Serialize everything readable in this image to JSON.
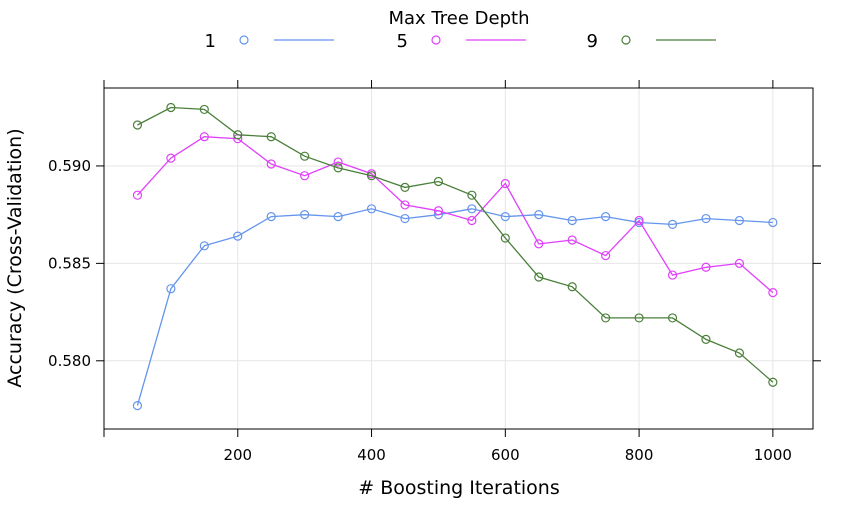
{
  "chart_data": {
    "type": "line",
    "xlabel": "# Boosting Iterations",
    "ylabel": "Accuracy (Cross-Validation)",
    "legend_title": "Max Tree Depth",
    "legend_position": "top",
    "grid": true,
    "xlim": [
      0,
      1060
    ],
    "ylim": [
      0.5765,
      0.594
    ],
    "x_ticks": [
      200,
      400,
      600,
      800,
      1000
    ],
    "y_ticks": [
      0.58,
      0.585,
      0.59
    ],
    "x_tick_labels": [
      "200",
      "400",
      "600",
      "800",
      "1000"
    ],
    "y_tick_labels": [
      "0.580",
      "0.585",
      "0.590"
    ],
    "x": [
      50,
      100,
      150,
      200,
      250,
      300,
      350,
      400,
      450,
      500,
      550,
      600,
      650,
      700,
      750,
      800,
      850,
      900,
      950,
      1000
    ],
    "series": [
      {
        "name": "1",
        "color": "#6495ED",
        "values": [
          0.5777,
          0.5837,
          0.5859,
          0.5864,
          0.5874,
          0.5875,
          0.5874,
          0.5878,
          0.5873,
          0.5875,
          0.5878,
          0.5874,
          0.5875,
          0.5872,
          0.5874,
          0.5871,
          0.587,
          0.5873,
          0.5872,
          0.5871
        ]
      },
      {
        "name": "5",
        "color": "#E040FB",
        "values": [
          0.5885,
          0.5904,
          0.5915,
          0.5914,
          0.5901,
          0.5895,
          0.5902,
          0.5896,
          0.588,
          0.5877,
          0.5872,
          0.5891,
          0.586,
          0.5862,
          0.5854,
          0.5872,
          0.5844,
          0.5848,
          0.585,
          0.5835
        ]
      },
      {
        "name": "9",
        "color": "#4A7F3A",
        "values": [
          0.5921,
          0.593,
          0.5929,
          0.5916,
          0.5915,
          0.5905,
          0.5899,
          0.5895,
          0.5889,
          0.5892,
          0.5885,
          0.5863,
          0.5843,
          0.5838,
          0.5822,
          0.5822,
          0.5822,
          0.5811,
          0.5804,
          0.5789
        ]
      }
    ]
  }
}
